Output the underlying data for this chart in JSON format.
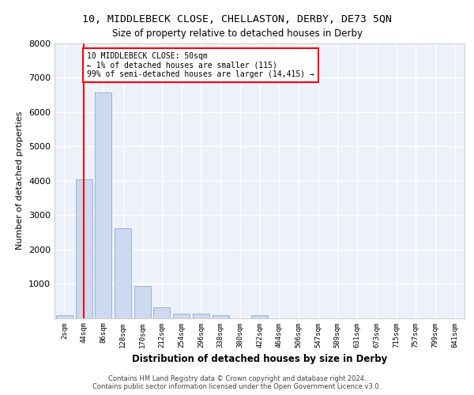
{
  "title_line1": "10, MIDDLEBECK CLOSE, CHELLASTON, DERBY, DE73 5QN",
  "title_line2": "Size of property relative to detached houses in Derby",
  "xlabel": "Distribution of detached houses by size in Derby",
  "ylabel": "Number of detached properties",
  "bar_color": "#ccd9ee",
  "bar_edge_color": "#8eadd4",
  "bin_labels": [
    "2sqm",
    "44sqm",
    "86sqm",
    "128sqm",
    "170sqm",
    "212sqm",
    "254sqm",
    "296sqm",
    "338sqm",
    "380sqm",
    "422sqm",
    "464sqm",
    "506sqm",
    "547sqm",
    "589sqm",
    "631sqm",
    "673sqm",
    "715sqm",
    "757sqm",
    "799sqm",
    "841sqm"
  ],
  "bar_values": [
    80,
    4050,
    6580,
    2620,
    940,
    320,
    130,
    120,
    70,
    0,
    70,
    0,
    0,
    0,
    0,
    0,
    0,
    0,
    0,
    0,
    0
  ],
  "ylim": [
    0,
    8000
  ],
  "yticks": [
    0,
    1000,
    2000,
    3000,
    4000,
    5000,
    6000,
    7000,
    8000
  ],
  "vline_x": 1.0,
  "annotation_text": "10 MIDDLEBECK CLOSE: 50sqm\n← 1% of detached houses are smaller (115)\n99% of semi-detached houses are larger (14,415) →",
  "annotation_box_color": "white",
  "annotation_box_edge_color": "red",
  "vline_color": "red",
  "background_color": "#edf1f9",
  "grid_color": "white",
  "footer_line1": "Contains HM Land Registry data © Crown copyright and database right 2024.",
  "footer_line2": "Contains public sector information licensed under the Open Government Licence v3.0."
}
